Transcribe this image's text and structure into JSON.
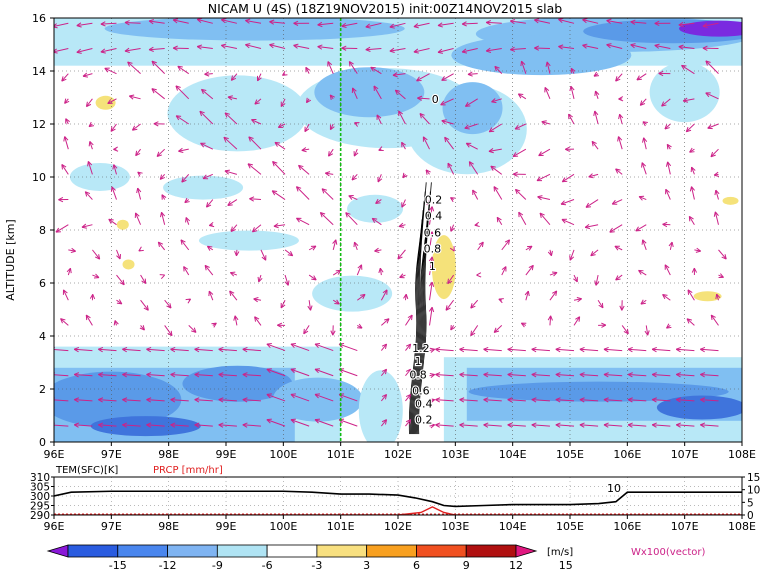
{
  "title": "NICAM U (4S) (18Z19NOV2015) init:00Z14NOV2015 slab",
  "chart_data": [
    {
      "type": "heatmap",
      "title": "NICAM U (4S) (18Z19NOV2015) init:00Z14NOV2015 slab",
      "ylabel": "ALTITUDE [km]",
      "x_ticks": [
        "96E",
        "97E",
        "98E",
        "99E",
        "100E",
        "101E",
        "102E",
        "103E",
        "104E",
        "105E",
        "106E",
        "107E",
        "108E"
      ],
      "xlim": [
        96,
        108
      ],
      "y_ticks": [
        "0",
        "2",
        "4",
        "6",
        "8",
        "10",
        "12",
        "14",
        "16"
      ],
      "ylim": [
        0,
        16
      ],
      "marked_longitude": 101,
      "contour_labels": [
        "0.2",
        "0.4",
        "0.6",
        "0.8",
        "1",
        "1.2",
        "1",
        "0.8",
        "0.6",
        "0.4",
        "0.2",
        "0"
      ],
      "vector_label": "Wx100(vector)"
    },
    {
      "type": "line",
      "left_label": "TEM(SFC)[K]",
      "right_label": "PRCP [mm/hr]",
      "left_ticks": [
        "310",
        "305",
        "300",
        "295",
        "290"
      ],
      "left_ylim": [
        290,
        310
      ],
      "right_ticks": [
        "15",
        "10",
        "5",
        "0"
      ],
      "right_ylim": [
        0,
        15
      ],
      "x_ticks": [
        "96E",
        "97E",
        "98E",
        "99E",
        "100E",
        "101E",
        "102E",
        "103E",
        "104E",
        "105E",
        "106E",
        "107E",
        "108E"
      ],
      "temp_annotation": "10",
      "series": [
        {
          "color": "#000000",
          "x": [
            96,
            96.3,
            97,
            98,
            99,
            100,
            100.5,
            101,
            101.5,
            102,
            102.3,
            102.6,
            102.8,
            103,
            103.5,
            104,
            104.5,
            105,
            105.5,
            105.8,
            106,
            106.5,
            107,
            107.5,
            108
          ],
          "values": [
            300,
            302,
            302.5,
            302.5,
            302.5,
            302.5,
            302,
            301,
            301,
            300.5,
            299,
            297,
            295,
            294.5,
            295,
            295.5,
            295.5,
            295.5,
            296,
            297,
            302,
            302,
            302,
            302,
            302
          ]
        },
        {
          "color": "#e02020",
          "x": [
            96,
            102,
            102.4,
            102.6,
            102.8,
            103,
            108
          ],
          "values": [
            0,
            0,
            1,
            3.2,
            1,
            0,
            0
          ]
        }
      ]
    }
  ],
  "colorbar": {
    "values": [
      "-15",
      "-12",
      "-9",
      "-6",
      "-3",
      "3",
      "6",
      "9",
      "12",
      "15"
    ],
    "unit": "[m/s]",
    "colors": [
      "#8a18d8",
      "#2a5ce0",
      "#4a86ee",
      "#7fb4f2",
      "#b0e4f4",
      "#ffffff",
      "#f8e080",
      "#f8a020",
      "#f05020",
      "#b01010",
      "#e01880"
    ]
  },
  "colors": {
    "pos_light": "#f5e27a",
    "neg_1": "#b8e8f7",
    "neg_2": "#80bff2",
    "neg_3": "#5a9ae8",
    "neg_4": "#3f74dc",
    "neg_5": "#7a2ae0",
    "vectors": "#cc2288",
    "marker_line": "#11bb11",
    "temp_line": "#000000",
    "prcp_line": "#e02020"
  }
}
